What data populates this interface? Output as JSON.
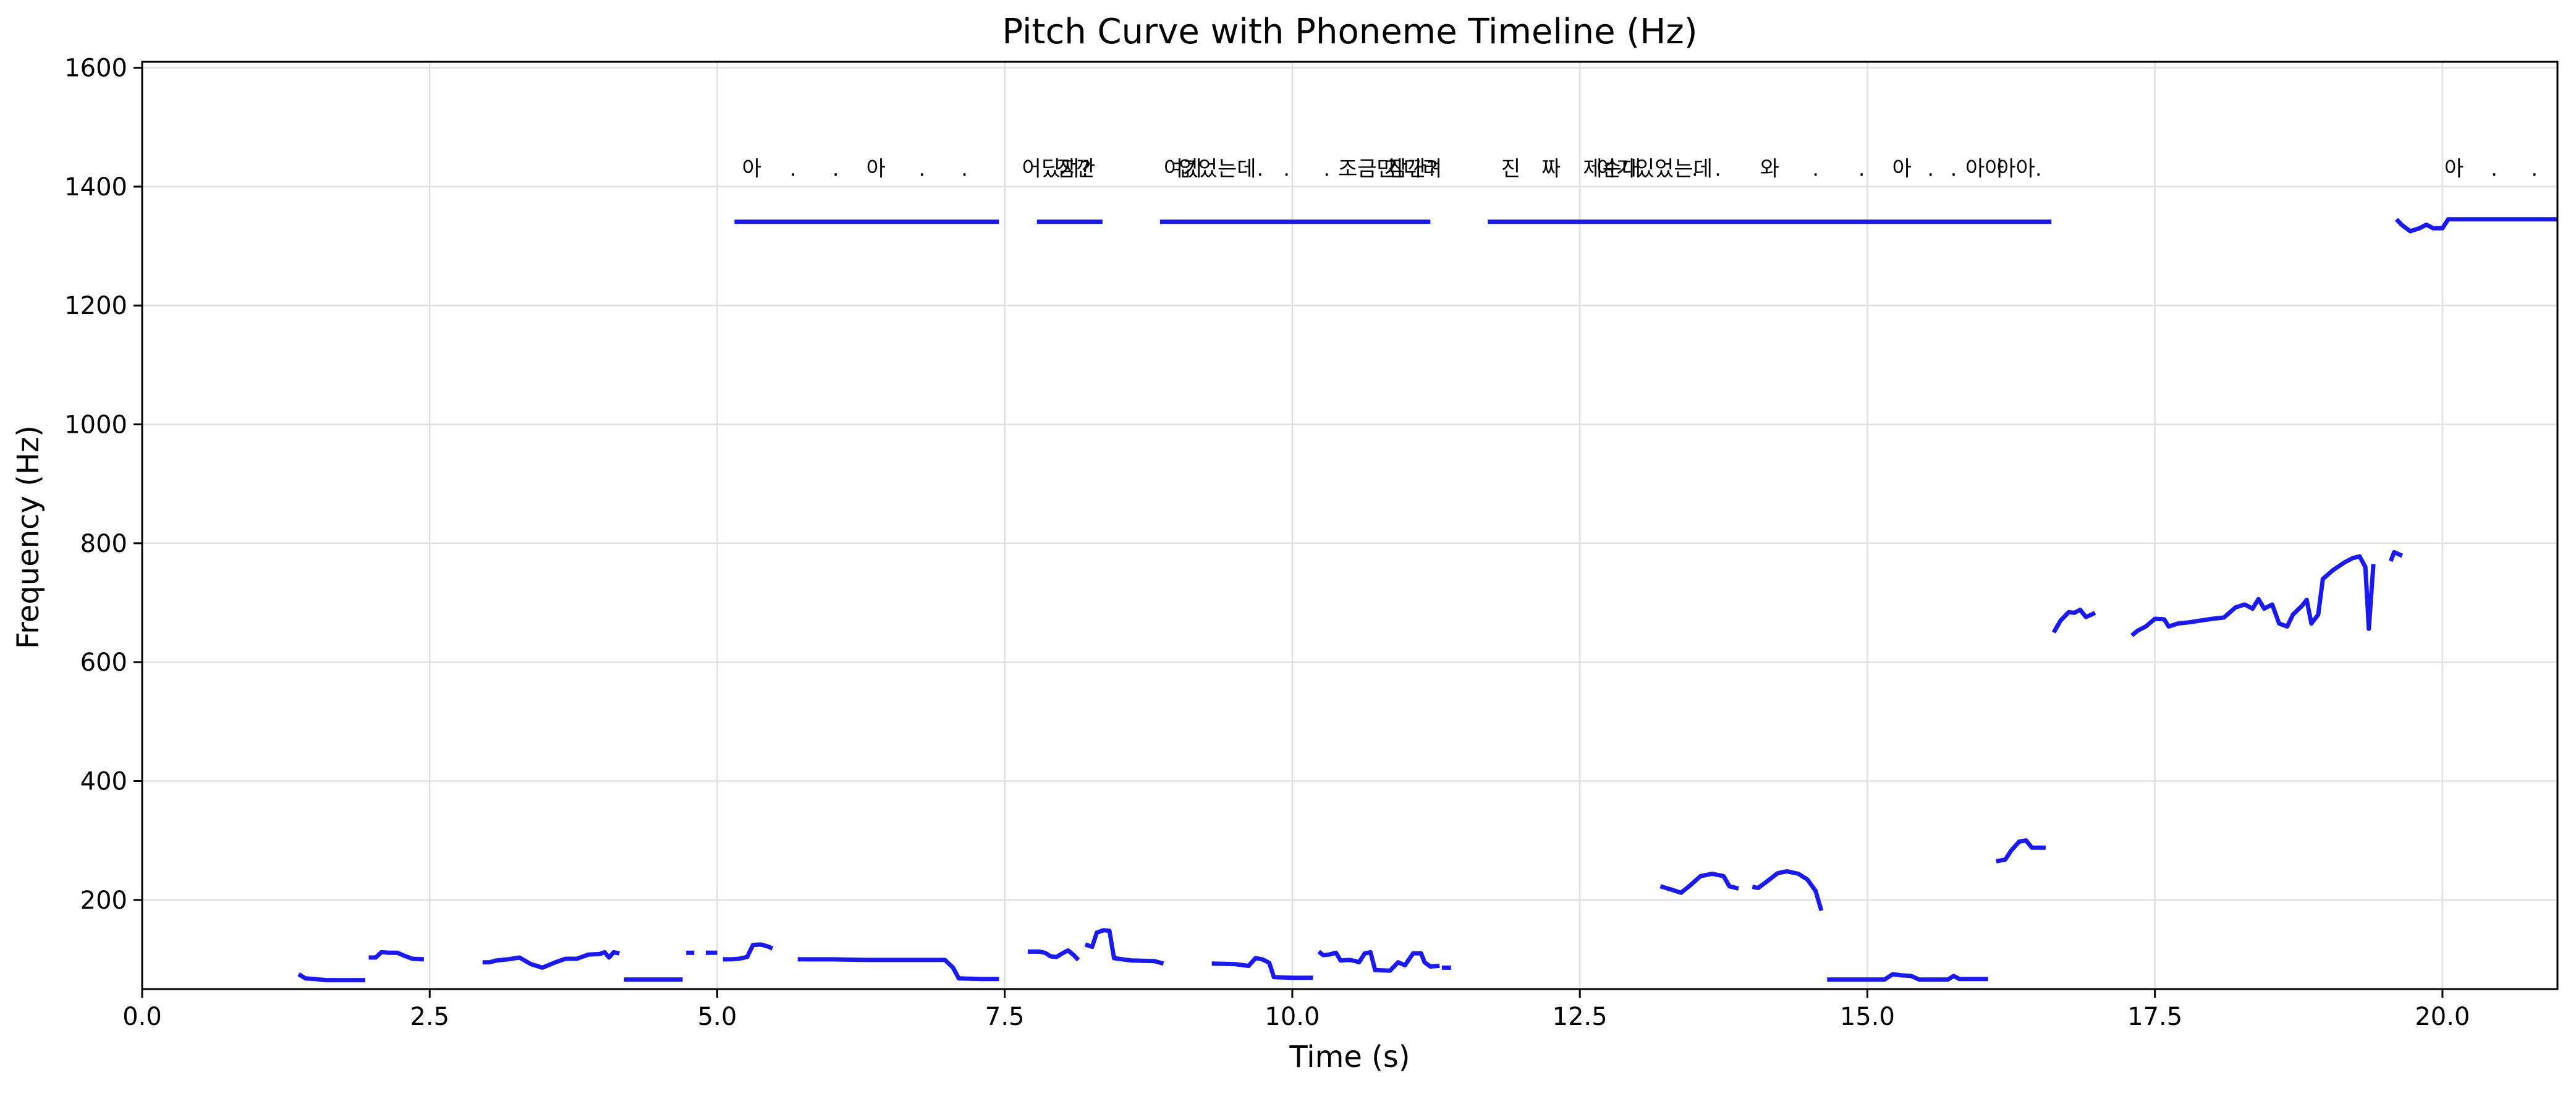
{
  "chart_data": {
    "type": "line",
    "title": "Pitch Curve with Phoneme Timeline (Hz)",
    "xlabel": "Time (s)",
    "ylabel": "Frequency (Hz)",
    "xlim": [
      0,
      21
    ],
    "ylim": [
      50,
      1610
    ],
    "xticks": [
      "0.0",
      "2.5",
      "5.0",
      "7.5",
      "10.0",
      "12.5",
      "15.0",
      "17.5",
      "20.0"
    ],
    "yticks": [
      "200",
      "400",
      "600",
      "800",
      "1000",
      "1200",
      "1400",
      "1600"
    ],
    "grid": true,
    "legend": "none",
    "line_color": "#1a1aee",
    "series": [
      {
        "points": [
          [
            [
              1.36,
              75
            ],
            [
              1.42,
              68
            ],
            [
              1.5,
              67
            ],
            [
              1.6,
              65
            ],
            [
              1.75,
              65
            ],
            [
              1.94,
              65
            ]
          ],
          [
            [
              1.97,
              103
            ],
            [
              2.03,
              103
            ],
            [
              2.08,
              112
            ],
            [
              2.15,
              111
            ],
            [
              2.22,
              111
            ],
            [
              2.28,
              106
            ],
            [
              2.35,
              101
            ],
            [
              2.45,
              100
            ]
          ],
          [
            [
              2.96,
              95
            ],
            [
              3.02,
              95
            ],
            [
              3.08,
              98
            ],
            [
              3.18,
              100
            ],
            [
              3.28,
              103
            ],
            [
              3.38,
              92
            ],
            [
              3.48,
              86
            ],
            [
              3.58,
              94
            ],
            [
              3.68,
              101
            ],
            [
              3.78,
              101
            ],
            [
              3.88,
              108
            ],
            [
              3.98,
              109
            ],
            [
              4.02,
              112
            ],
            [
              4.06,
              103
            ],
            [
              4.1,
              112
            ],
            [
              4.15,
              110
            ]
          ],
          [
            [
              4.19,
              66
            ],
            [
              4.35,
              66
            ],
            [
              4.5,
              66
            ],
            [
              4.7,
              66
            ]
          ],
          [
            [
              4.73,
              111
            ],
            [
              4.8,
              111
            ]
          ],
          [
            [
              4.9,
              111
            ],
            [
              5.0,
              111
            ]
          ],
          [
            [
              5.05,
              100
            ],
            [
              5.12,
              100
            ],
            [
              5.19,
              101
            ],
            [
              5.26,
              104
            ],
            [
              5.31,
              124
            ],
            [
              5.38,
              125
            ],
            [
              5.45,
              121
            ],
            [
              5.48,
              118
            ]
          ],
          [
            [
              5.7,
              100
            ],
            [
              6.0,
              100
            ],
            [
              6.3,
              99
            ],
            [
              6.7,
              99
            ],
            [
              6.98,
              99
            ],
            [
              7.05,
              86
            ],
            [
              7.1,
              68
            ],
            [
              7.3,
              67
            ],
            [
              7.45,
              67
            ]
          ],
          [
            [
              7.7,
              113
            ],
            [
              7.8,
              113
            ],
            [
              7.85,
              111
            ],
            [
              7.9,
              105
            ],
            [
              7.95,
              104
            ],
            [
              8.0,
              110
            ],
            [
              8.05,
              115
            ],
            [
              8.1,
              107
            ],
            [
              8.14,
              99
            ]
          ],
          [
            [
              8.2,
              125
            ],
            [
              8.26,
              121
            ],
            [
              8.3,
              145
            ],
            [
              8.36,
              149
            ],
            [
              8.41,
              148
            ],
            [
              8.45,
              102
            ],
            [
              8.6,
              98
            ],
            [
              8.8,
              97
            ],
            [
              8.88,
              93
            ]
          ],
          [
            [
              9.3,
              93
            ],
            [
              9.5,
              92
            ],
            [
              9.62,
              89
            ],
            [
              9.68,
              102
            ],
            [
              9.74,
              100
            ],
            [
              9.8,
              94
            ],
            [
              9.84,
              70
            ],
            [
              10.0,
              69
            ],
            [
              10.18,
              69
            ]
          ],
          [
            [
              10.23,
              113
            ],
            [
              10.27,
              107
            ],
            [
              10.32,
              108
            ],
            [
              10.38,
              111
            ],
            [
              10.42,
              98
            ],
            [
              10.5,
              99
            ],
            [
              10.55,
              97
            ],
            [
              10.58,
              95
            ],
            [
              10.63,
              110
            ],
            [
              10.68,
              112
            ],
            [
              10.72,
              82
            ],
            [
              10.85,
              81
            ],
            [
              10.92,
              95
            ],
            [
              10.98,
              90
            ],
            [
              11.05,
              110
            ],
            [
              11.12,
              110
            ],
            [
              11.15,
              95
            ],
            [
              11.2,
              88
            ],
            [
              11.28,
              89
            ]
          ],
          [
            [
              11.3,
              86
            ],
            [
              11.38,
              86
            ]
          ],
          [
            [
              11.7,
              1341
            ],
            [
              12.5,
              1341
            ],
            [
              13.5,
              1341
            ],
            [
              14.5,
              1341
            ],
            [
              15.5,
              1341
            ],
            [
              16.6,
              1341
            ]
          ],
          [
            [
              5.15,
              1341
            ],
            [
              6.0,
              1341
            ],
            [
              6.8,
              1341
            ],
            [
              7.45,
              1341
            ]
          ],
          [
            [
              7.78,
              1341
            ],
            [
              8.35,
              1341
            ]
          ],
          [
            [
              8.85,
              1341
            ],
            [
              9.6,
              1341
            ],
            [
              10.4,
              1341
            ],
            [
              11.2,
              1341
            ]
          ],
          [
            [
              13.2,
              223
            ],
            [
              13.3,
              217
            ],
            [
              13.38,
              212
            ],
            [
              13.45,
              223
            ],
            [
              13.55,
              240
            ],
            [
              13.65,
              244
            ],
            [
              13.75,
              240
            ],
            [
              13.8,
              223
            ],
            [
              13.88,
              219
            ]
          ],
          [
            [
              14.0,
              222
            ],
            [
              14.05,
              220
            ],
            [
              14.12,
              230
            ],
            [
              14.22,
              245
            ],
            [
              14.3,
              248
            ],
            [
              14.4,
              244
            ],
            [
              14.48,
              234
            ],
            [
              14.55,
              215
            ],
            [
              14.6,
              182
            ]
          ],
          [
            [
              14.65,
              66
            ],
            [
              14.9,
              66
            ],
            [
              15.15,
              66
            ],
            [
              15.22,
              75
            ],
            [
              15.3,
              73
            ],
            [
              15.38,
              72
            ],
            [
              15.45,
              66
            ],
            [
              15.6,
              66
            ],
            [
              15.7,
              66
            ],
            [
              15.75,
              72
            ],
            [
              15.8,
              67
            ],
            [
              16.05,
              67
            ]
          ],
          [
            [
              16.12,
              265
            ],
            [
              16.2,
              268
            ],
            [
              16.25,
              283
            ],
            [
              16.32,
              298
            ],
            [
              16.38,
              300
            ],
            [
              16.43,
              288
            ],
            [
              16.55,
              288
            ]
          ],
          [
            [
              16.62,
              650
            ],
            [
              16.68,
              670
            ],
            [
              16.75,
              684
            ],
            [
              16.8,
              683
            ],
            [
              16.85,
              688
            ],
            [
              16.9,
              676
            ],
            [
              16.95,
              680
            ],
            [
              16.98,
              683
            ]
          ],
          [
            [
              17.3,
              645
            ],
            [
              17.35,
              653
            ],
            [
              17.42,
              660
            ],
            [
              17.5,
              673
            ],
            [
              17.58,
              672
            ],
            [
              17.62,
              660
            ],
            [
              17.7,
              665
            ],
            [
              17.8,
              667
            ],
            [
              17.9,
              670
            ],
            [
              18.0,
              673
            ],
            [
              18.1,
              675
            ],
            [
              18.2,
              692
            ],
            [
              18.28,
              697
            ],
            [
              18.35,
              690
            ],
            [
              18.4,
              706
            ],
            [
              18.45,
              690
            ],
            [
              18.52,
              697
            ],
            [
              18.58,
              665
            ],
            [
              18.65,
              660
            ],
            [
              18.7,
              680
            ],
            [
              18.78,
              695
            ],
            [
              18.82,
              705
            ],
            [
              18.86,
              665
            ],
            [
              18.92,
              680
            ],
            [
              18.96,
              740
            ],
            [
              19.05,
              755
            ],
            [
              19.15,
              768
            ],
            [
              19.22,
              775
            ],
            [
              19.28,
              778
            ],
            [
              19.33,
              760
            ],
            [
              19.36,
              656
            ],
            [
              19.4,
              765
            ]
          ],
          [
            [
              19.55,
              770
            ],
            [
              19.58,
              785
            ],
            [
              19.65,
              779
            ]
          ],
          [
            [
              19.6,
              1345
            ],
            [
              19.65,
              1335
            ],
            [
              19.72,
              1325
            ],
            [
              19.8,
              1330
            ],
            [
              19.86,
              1336
            ],
            [
              19.92,
              1330
            ],
            [
              20.0,
              1330
            ],
            [
              20.05,
              1345
            ],
            [
              20.5,
              1345
            ],
            [
              21.0,
              1345
            ]
          ]
        ]
      }
    ],
    "annotations": [
      {
        "x": 5.3,
        "y": 1418,
        "text": "아"
      },
      {
        "x": 5.66,
        "y": 1418,
        "text": "."
      },
      {
        "x": 6.03,
        "y": 1418,
        "text": "."
      },
      {
        "x": 6.38,
        "y": 1418,
        "text": "아"
      },
      {
        "x": 6.78,
        "y": 1418,
        "text": "."
      },
      {
        "x": 7.15,
        "y": 1418,
        "text": "."
      },
      {
        "x": 7.95,
        "y": 1418,
        "text": "어딨지?"
      },
      {
        "x": 8.12,
        "y": 1418,
        "text": "잠깐"
      },
      {
        "x": 9.05,
        "y": 1418,
        "text": "여기"
      },
      {
        "x": 9.35,
        "y": 1418,
        "text": "없었는데"
      },
      {
        "x": 9.72,
        "y": 1418,
        "text": "."
      },
      {
        "x": 9.95,
        "y": 1418,
        "text": "."
      },
      {
        "x": 10.3,
        "y": 1418,
        "text": "."
      },
      {
        "x": 10.65,
        "y": 1418,
        "text": "조금만"
      },
      {
        "x": 11.05,
        "y": 1418,
        "text": "기다려"
      },
      {
        "x": 11.05,
        "y": 1418,
        "text": "잠깐?"
      },
      {
        "x": 11.9,
        "y": 1418,
        "text": "진"
      },
      {
        "x": 12.25,
        "y": 1418,
        "text": "짜"
      },
      {
        "x": 12.78,
        "y": 1418,
        "text": "제순대"
      },
      {
        "x": 13.15,
        "y": 1418,
        "text": "여기있었는데"
      },
      {
        "x": 13.5,
        "y": 1418,
        "text": "."
      },
      {
        "x": 13.7,
        "y": 1418,
        "text": "."
      },
      {
        "x": 14.15,
        "y": 1418,
        "text": "와"
      },
      {
        "x": 14.55,
        "y": 1418,
        "text": "."
      },
      {
        "x": 14.95,
        "y": 1418,
        "text": "."
      },
      {
        "x": 15.3,
        "y": 1418,
        "text": "아"
      },
      {
        "x": 15.55,
        "y": 1418,
        "text": "."
      },
      {
        "x": 15.75,
        "y": 1418,
        "text": "."
      },
      {
        "x": 16.02,
        "y": 1418,
        "text": "아아"
      },
      {
        "x": 16.32,
        "y": 1418,
        "text": "아아."
      },
      {
        "x": 20.1,
        "y": 1418,
        "text": "아"
      },
      {
        "x": 20.45,
        "y": 1418,
        "text": "."
      },
      {
        "x": 20.8,
        "y": 1418,
        "text": "."
      }
    ]
  }
}
